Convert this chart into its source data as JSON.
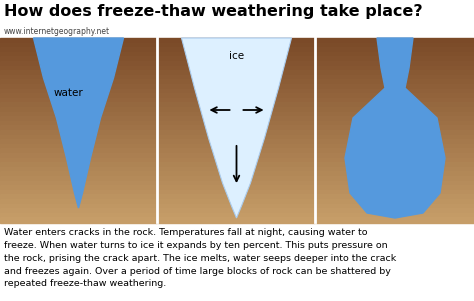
{
  "title": "How does freeze-thaw weathering take place?",
  "subtitle": "www.internetgeography.net",
  "body_text": "Water enters cracks in the rock. Temperatures fall at night, causing water to\nfreeze. When water turns to ice it expands by ten percent. This puts pressure on\nthe rock, prising the crack apart. The ice melts, water seeps deeper into the crack\nand freezes again. Over a period of time large blocks of rock can be shattered by\nrepeated freeze-thaw weathering.",
  "bg_color": "#ffffff",
  "rock_color_top": "#7B4A28",
  "rock_color_bottom": "#C8A06A",
  "water_color": "#5599DD",
  "ice_color": "#DDF0FF",
  "ice_border_color": "#AACCEE",
  "title_fontsize": 11.5,
  "subtitle_fontsize": 5.5,
  "body_fontsize": 6.8,
  "label_fontsize": 7.5
}
